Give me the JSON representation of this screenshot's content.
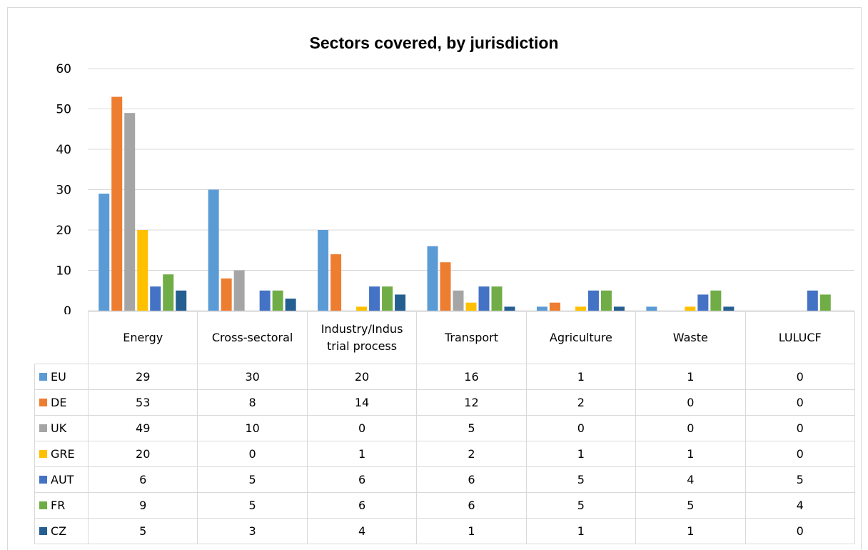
{
  "chart_data": {
    "type": "bar",
    "title": "Sectors covered, by jurisdiction",
    "categories": [
      "Energy",
      "Cross-sectoral",
      "Industry/Indus trial process",
      "Transport",
      "Agriculture",
      "Waste",
      "LULUCF"
    ],
    "category_lines": [
      [
        "Energy"
      ],
      [
        "Cross-sectoral"
      ],
      [
        "Industry/Indus",
        "trial process"
      ],
      [
        "Transport"
      ],
      [
        "Agriculture"
      ],
      [
        "Waste"
      ],
      [
        "LULUCF"
      ]
    ],
    "ylim": [
      0,
      60
    ],
    "yticks": [
      0,
      10,
      20,
      30,
      40,
      50,
      60
    ],
    "grid": true,
    "legend": "data table",
    "series": [
      {
        "name": "EU",
        "color": "#5b9bd5",
        "values": [
          29,
          30,
          20,
          16,
          1,
          1,
          0
        ]
      },
      {
        "name": "DE",
        "color": "#ed7d31",
        "values": [
          53,
          8,
          14,
          12,
          2,
          0,
          0
        ]
      },
      {
        "name": "UK",
        "color": "#a5a5a5",
        "values": [
          49,
          10,
          0,
          5,
          0,
          0,
          0
        ]
      },
      {
        "name": "GRE",
        "color": "#ffc000",
        "values": [
          20,
          0,
          1,
          2,
          1,
          1,
          0
        ]
      },
      {
        "name": "AUT",
        "color": "#4472c4",
        "values": [
          6,
          5,
          6,
          6,
          5,
          4,
          5
        ]
      },
      {
        "name": "FR",
        "color": "#70ad47",
        "values": [
          9,
          5,
          6,
          6,
          5,
          5,
          4
        ]
      },
      {
        "name": "CZ",
        "color": "#255e91",
        "values": [
          5,
          3,
          4,
          1,
          1,
          1,
          0
        ]
      }
    ]
  }
}
